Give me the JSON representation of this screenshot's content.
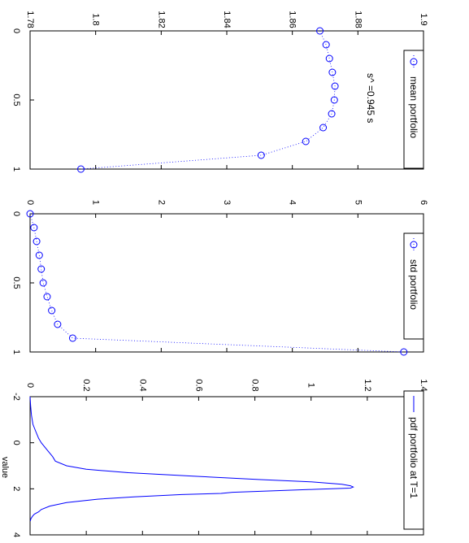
{
  "chart_data": [
    {
      "type": "scatter",
      "title": "",
      "xlabel": "",
      "ylabel": "",
      "xlim": [
        0,
        1
      ],
      "ylim": [
        1.78,
        1.9
      ],
      "x_ticks": [
        "0",
        "0.5",
        "1"
      ],
      "y_ticks": [
        "1.78",
        "1.8",
        "1.82",
        "1.84",
        "1.86",
        "1.88",
        "1.9"
      ],
      "legend_position": "top-right",
      "annotation": "s^ =0.945 s",
      "series": [
        {
          "name": "mean portfolio",
          "color": "#0000ff",
          "marker": "circle",
          "line_style": "dotted",
          "x": [
            0,
            0.1,
            0.2,
            0.3,
            0.4,
            0.5,
            0.6,
            0.7,
            0.8,
            0.9,
            1.0
          ],
          "y": [
            1.8684,
            1.8703,
            1.8713,
            1.8722,
            1.873,
            1.8728,
            1.872,
            1.8694,
            1.8641,
            1.8505,
            1.7955
          ]
        }
      ]
    },
    {
      "type": "scatter",
      "title": "",
      "xlabel": "",
      "ylabel": "",
      "xlim": [
        0,
        1
      ],
      "ylim": [
        0,
        6
      ],
      "x_ticks": [
        "0",
        "0.5",
        "1"
      ],
      "y_ticks": [
        "0",
        "1",
        "2",
        "3",
        "4",
        "5",
        "6"
      ],
      "legend_position": "top-right",
      "series": [
        {
          "name": "std portfolio",
          "color": "#0000ff",
          "marker": "circle",
          "line_style": "dotted",
          "x": [
            0,
            0.1,
            0.2,
            0.3,
            0.4,
            0.5,
            0.6,
            0.7,
            0.8,
            0.9,
            1.0
          ],
          "y": [
            0.0,
            0.06,
            0.1,
            0.14,
            0.17,
            0.2,
            0.26,
            0.33,
            0.42,
            0.65,
            5.7
          ]
        }
      ]
    },
    {
      "type": "line",
      "title": "",
      "xlabel": "value",
      "ylabel": "",
      "xlim": [
        -2,
        4
      ],
      "ylim": [
        0,
        1.4
      ],
      "x_ticks": [
        "-2",
        "0",
        "2",
        "4"
      ],
      "y_ticks": [
        "0",
        "0.2",
        "0.4",
        "0.6",
        "0.8",
        "1",
        "1.2",
        "1.4"
      ],
      "legend_position": "top-right",
      "series": [
        {
          "name": "pdf portfolio at T=1",
          "color": "#0000ff",
          "x": [
            -2.0,
            -1.6,
            -1.2,
            -0.8,
            -0.5,
            -0.2,
            0.0,
            0.3,
            0.6,
            0.8,
            1.0,
            1.15,
            1.3,
            1.45,
            1.6,
            1.7,
            1.8,
            1.87,
            1.92,
            1.97,
            2.02,
            2.08,
            2.15,
            2.2,
            2.25,
            2.35,
            2.45,
            2.6,
            2.75,
            2.9,
            3.0,
            3.1,
            3.2,
            3.3,
            3.4
          ],
          "y": [
            0.0,
            0.002,
            0.005,
            0.01,
            0.02,
            0.03,
            0.04,
            0.06,
            0.08,
            0.09,
            0.13,
            0.2,
            0.35,
            0.58,
            0.82,
            1.0,
            1.11,
            1.14,
            1.15,
            1.14,
            1.02,
            0.88,
            0.72,
            0.68,
            0.54,
            0.37,
            0.24,
            0.13,
            0.07,
            0.04,
            0.03,
            0.015,
            0.008,
            0.003,
            0.001
          ]
        }
      ]
    }
  ]
}
